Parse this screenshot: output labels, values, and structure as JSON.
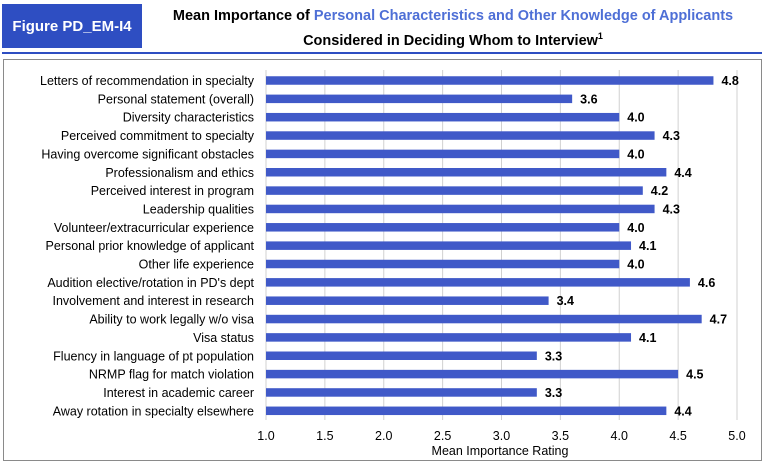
{
  "figure_label": "Figure PD_EM-I4",
  "title": {
    "part1": "Mean Importance of ",
    "highlight": "Personal Characteristics and Other Knowledge of Applicants",
    "line2": "Considered in Deciding Whom to Interview",
    "footnote": "1"
  },
  "colors": {
    "bar": "#4059c8",
    "figure_label_bg": "#2e4ec2",
    "title_highlight": "#4e6fd6"
  },
  "chart_data": {
    "type": "bar",
    "orientation": "horizontal",
    "categories": [
      "Letters of recommendation in specialty",
      "Personal statement (overall)",
      "Diversity characteristics",
      "Perceived commitment to specialty",
      "Having overcome significant obstacles",
      "Professionalism and ethics",
      "Perceived interest in program",
      "Leadership qualities",
      "Volunteer/extracurricular experience",
      "Personal prior knowledge of applicant",
      "Other life experience",
      "Audition elective/rotation in PD's dept",
      "Involvement and interest in research",
      "Ability to work legally w/o visa",
      "Visa status",
      "Fluency in language of pt population",
      "NRMP flag for match violation",
      "Interest in academic career",
      "Away rotation in specialty elsewhere"
    ],
    "values": [
      4.8,
      3.6,
      4.0,
      4.3,
      4.0,
      4.4,
      4.2,
      4.3,
      4.0,
      4.1,
      4.0,
      4.6,
      3.4,
      4.7,
      4.1,
      3.3,
      4.5,
      3.3,
      4.4
    ],
    "data_labels": [
      "4.8",
      "3.6",
      "4.0",
      "4.3",
      "4.0",
      "4.4",
      "4.2",
      "4.3",
      "4.0",
      "4.1",
      "4.0",
      "4.6",
      "3.4",
      "4.7",
      "4.1",
      "3.3",
      "4.5",
      "3.3",
      "4.4"
    ],
    "xlabel": "Mean Importance Rating",
    "ylabel": "",
    "xlim": [
      1.0,
      5.0
    ],
    "xticks": [
      "1.0",
      "1.5",
      "2.0",
      "2.5",
      "3.0",
      "3.5",
      "4.0",
      "4.5",
      "5.0"
    ],
    "grid": "vertical",
    "legend": "none"
  }
}
